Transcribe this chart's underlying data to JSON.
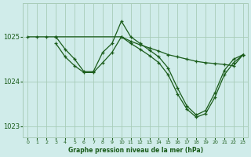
{
  "background_color": "#d0ecea",
  "plot_bg_color": "#d0ecea",
  "line_color": "#1a5c1a",
  "marker_color": "#1a5c1a",
  "grid_color": "#a8ccb8",
  "xlabel": "Graphe pression niveau de la mer (hPa)",
  "xlabel_color": "#1a5c1a",
  "ylim": [
    1022.75,
    1025.75
  ],
  "xlim": [
    -0.5,
    23.5
  ],
  "yticks": [
    1023,
    1024,
    1025
  ],
  "xticks": [
    0,
    1,
    2,
    3,
    4,
    5,
    6,
    7,
    8,
    9,
    10,
    11,
    12,
    13,
    14,
    15,
    16,
    17,
    18,
    19,
    20,
    21,
    22,
    23
  ],
  "series": [
    {
      "x": [
        0,
        1,
        2,
        3,
        10,
        11,
        12,
        13,
        14,
        15,
        16,
        17,
        18,
        19,
        20,
        21,
        22,
        23
      ],
      "y": [
        1025.0,
        1025.0,
        1025.0,
        1025.0,
        1025.0,
        1024.9,
        1024.82,
        1024.75,
        1024.68,
        1024.6,
        1024.55,
        1024.5,
        1024.45,
        1024.42,
        1024.4,
        1024.38,
        1024.35,
        1024.6
      ]
    },
    {
      "x": [
        3,
        4,
        5,
        6,
        7,
        8,
        9,
        10,
        11,
        12,
        13,
        14,
        15,
        16,
        17,
        18,
        19,
        20,
        21,
        22,
        23
      ],
      "y": [
        1025.0,
        1024.72,
        1024.5,
        1024.22,
        1024.22,
        1024.65,
        1024.85,
        1025.35,
        1025.0,
        1024.85,
        1024.7,
        1024.55,
        1024.3,
        1023.85,
        1023.45,
        1023.25,
        1023.35,
        1023.75,
        1024.25,
        1024.5,
        1024.6
      ]
    },
    {
      "x": [
        3,
        4,
        5,
        6,
        7,
        8,
        9,
        10,
        11,
        12,
        13,
        14,
        15,
        16,
        17,
        18,
        19,
        20,
        21,
        22,
        23
      ],
      "y": [
        1024.85,
        1024.55,
        1024.35,
        1024.2,
        1024.2,
        1024.42,
        1024.65,
        1025.0,
        1024.85,
        1024.72,
        1024.58,
        1024.42,
        1024.15,
        1023.72,
        1023.38,
        1023.2,
        1023.28,
        1023.65,
        1024.15,
        1024.42,
        1024.6
      ]
    }
  ]
}
